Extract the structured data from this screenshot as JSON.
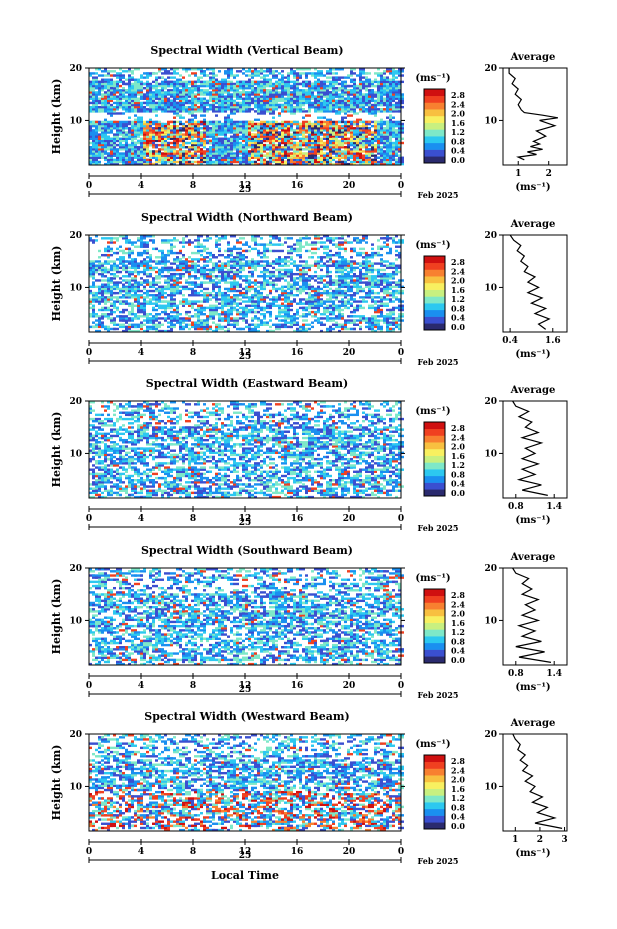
{
  "colors": {
    "scale": [
      "#2a2a6e",
      "#3a4fd0",
      "#1a8ff0",
      "#2cc8f0",
      "#7ee8c8",
      "#c8f080",
      "#f8f060",
      "#f8c040",
      "#f88030",
      "#f04020",
      "#d01010"
    ]
  },
  "legend_unit": "(ms⁻¹)",
  "legend_ticks": [
    "2.8",
    "2.4",
    "2.0",
    "1.6",
    "1.2",
    "0.8",
    "0.4",
    "0.0"
  ],
  "avg_title": "Average",
  "avg_unit": "(ms⁻¹)",
  "y_label": "Height (km)",
  "date_label": "Feb 2025",
  "day_label": "25",
  "x_axis_title": "Local Time",
  "chart_data": [
    {
      "type": "heatmap",
      "title": "Spectral Width (Vertical Beam)",
      "x_ticks": [
        "0",
        "4",
        "8",
        "12",
        "16",
        "20",
        "0"
      ],
      "y_ticks": [
        "20",
        "10"
      ],
      "xlim": [
        0,
        24
      ],
      "ylim": [
        1.5,
        20
      ],
      "avg_ticks": [
        "1",
        "2"
      ],
      "avg_xlim": [
        0.5,
        2.6
      ],
      "avg_profile": [
        [
          1.2,
          2.5
        ],
        [
          1.0,
          3
        ],
        [
          1.6,
          3.5
        ],
        [
          1.3,
          4
        ],
        [
          1.8,
          4.5
        ],
        [
          1.4,
          5
        ],
        [
          1.7,
          5.5
        ],
        [
          1.5,
          6
        ],
        [
          1.9,
          7
        ],
        [
          1.6,
          8
        ],
        [
          2.2,
          9
        ],
        [
          1.7,
          10
        ],
        [
          2.3,
          10.5
        ],
        [
          1.8,
          11
        ],
        [
          1.2,
          11.5
        ],
        [
          1.1,
          12
        ],
        [
          1.0,
          13
        ],
        [
          1.1,
          14
        ],
        [
          0.9,
          15
        ],
        [
          1.0,
          16
        ],
        [
          0.8,
          17
        ],
        [
          0.9,
          18
        ],
        [
          0.7,
          19
        ],
        [
          0.7,
          20
        ]
      ]
    },
    {
      "type": "heatmap",
      "title": "Spectral Width (Northward Beam)",
      "x_ticks": [
        "0",
        "4",
        "8",
        "12",
        "16",
        "20",
        "0"
      ],
      "y_ticks": [
        "20",
        "10"
      ],
      "xlim": [
        0,
        24
      ],
      "ylim": [
        1.5,
        20
      ],
      "avg_ticks": [
        "0.4",
        "1.6"
      ],
      "avg_xlim": [
        0.2,
        2.0
      ],
      "avg_profile": [
        [
          1.4,
          2
        ],
        [
          1.2,
          3
        ],
        [
          1.5,
          4
        ],
        [
          1.1,
          5
        ],
        [
          1.4,
          6
        ],
        [
          1.0,
          7
        ],
        [
          1.3,
          8
        ],
        [
          0.9,
          9
        ],
        [
          1.2,
          10
        ],
        [
          0.9,
          11
        ],
        [
          1.1,
          12
        ],
        [
          0.8,
          13
        ],
        [
          0.9,
          14
        ],
        [
          0.7,
          15
        ],
        [
          0.8,
          16
        ],
        [
          0.6,
          17
        ],
        [
          0.7,
          18
        ],
        [
          0.5,
          19
        ],
        [
          0.4,
          20
        ]
      ]
    },
    {
      "type": "heatmap",
      "title": "Spectral Width (Eastward Beam)",
      "x_ticks": [
        "0",
        "4",
        "8",
        "12",
        "16",
        "20",
        "0"
      ],
      "y_ticks": [
        "20",
        "10"
      ],
      "xlim": [
        0,
        24
      ],
      "ylim": [
        1.5,
        20
      ],
      "avg_ticks": [
        "0.8",
        "1.4"
      ],
      "avg_xlim": [
        0.6,
        1.6
      ],
      "avg_profile": [
        [
          1.3,
          2
        ],
        [
          0.9,
          3
        ],
        [
          1.2,
          4
        ],
        [
          0.85,
          5
        ],
        [
          1.1,
          6
        ],
        [
          0.9,
          7
        ],
        [
          1.15,
          8
        ],
        [
          0.9,
          9
        ],
        [
          1.1,
          10
        ],
        [
          0.95,
          11
        ],
        [
          1.2,
          12
        ],
        [
          0.9,
          13
        ],
        [
          1.15,
          14
        ],
        [
          0.95,
          15
        ],
        [
          1.05,
          16
        ],
        [
          0.85,
          17
        ],
        [
          1.0,
          18
        ],
        [
          0.8,
          19
        ],
        [
          0.75,
          20
        ]
      ]
    },
    {
      "type": "heatmap",
      "title": "Spectral Width (Southward Beam)",
      "x_ticks": [
        "0",
        "4",
        "8",
        "12",
        "16",
        "20",
        "0"
      ],
      "y_ticks": [
        "20",
        "10"
      ],
      "xlim": [
        0,
        24
      ],
      "ylim": [
        1.5,
        20
      ],
      "avg_ticks": [
        "0.8",
        "1.4"
      ],
      "avg_xlim": [
        0.6,
        1.6
      ],
      "avg_profile": [
        [
          1.35,
          2
        ],
        [
          0.85,
          3
        ],
        [
          1.25,
          4
        ],
        [
          0.8,
          5
        ],
        [
          1.2,
          6
        ],
        [
          0.9,
          7
        ],
        [
          1.1,
          8
        ],
        [
          0.85,
          9
        ],
        [
          1.15,
          10
        ],
        [
          0.9,
          11
        ],
        [
          1.1,
          12
        ],
        [
          0.95,
          13
        ],
        [
          1.15,
          14
        ],
        [
          0.9,
          15
        ],
        [
          1.05,
          16
        ],
        [
          0.9,
          17
        ],
        [
          1.0,
          18
        ],
        [
          0.8,
          19
        ],
        [
          0.75,
          20
        ]
      ]
    },
    {
      "type": "heatmap",
      "title": "Spectral Width (Westward Beam)",
      "x_ticks": [
        "0",
        "4",
        "8",
        "12",
        "16",
        "20",
        "0"
      ],
      "y_ticks": [
        "20",
        "10"
      ],
      "xlim": [
        0,
        24
      ],
      "ylim": [
        1.5,
        20
      ],
      "avg_ticks": [
        "1",
        "2",
        "3"
      ],
      "avg_xlim": [
        0.5,
        3.1
      ],
      "avg_profile": [
        [
          2.9,
          2
        ],
        [
          1.8,
          3
        ],
        [
          2.6,
          4
        ],
        [
          1.9,
          5
        ],
        [
          2.3,
          6
        ],
        [
          1.7,
          7
        ],
        [
          2.1,
          8
        ],
        [
          1.6,
          9
        ],
        [
          1.8,
          10
        ],
        [
          1.4,
          11
        ],
        [
          1.7,
          12
        ],
        [
          1.3,
          13
        ],
        [
          1.5,
          14
        ],
        [
          1.2,
          15
        ],
        [
          1.4,
          16
        ],
        [
          1.1,
          17
        ],
        [
          1.2,
          18
        ],
        [
          1.0,
          19
        ],
        [
          0.9,
          20
        ]
      ]
    }
  ]
}
